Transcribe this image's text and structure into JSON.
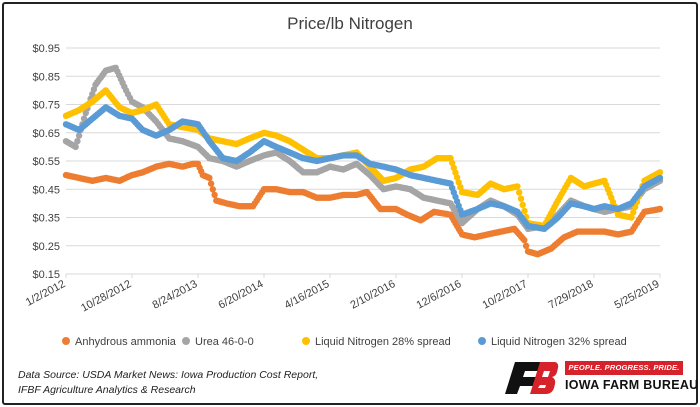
{
  "colors": {
    "anhydrous": "#ED7D31",
    "urea": "#A5A5A5",
    "liquid28": "#FFC000",
    "liquid32": "#5B9BD5",
    "grid": "#D9D9D9",
    "brand_red": "#D6232B"
  },
  "chart_data": {
    "type": "scatter",
    "title": "Price/lb Nitrogen",
    "xlabel": "",
    "ylabel": "",
    "ylim": [
      0.15,
      0.95
    ],
    "yticks": [
      "$0.15",
      "$0.25",
      "$0.35",
      "$0.45",
      "$0.55",
      "$0.65",
      "$0.75",
      "$0.85",
      "$0.95"
    ],
    "xticks": [
      "1/2/2012",
      "10/28/2012",
      "8/24/2013",
      "6/20/2014",
      "4/16/2015",
      "2/10/2016",
      "12/6/2016",
      "10/2/2017",
      "7/29/2018",
      "5/25/2019"
    ],
    "xlim": [
      "2012-01-02",
      "2019-05-25"
    ],
    "grid": true,
    "legend_position": "bottom",
    "series": [
      {
        "name": "Anhydrous ammonia",
        "key": "anhydrous",
        "points": [
          [
            "2012-01-02",
            0.5
          ],
          [
            "2012-03-01",
            0.49
          ],
          [
            "2012-05-01",
            0.48
          ],
          [
            "2012-07-01",
            0.49
          ],
          [
            "2012-09-01",
            0.48
          ],
          [
            "2012-10-28",
            0.5
          ],
          [
            "2012-12-15",
            0.51
          ],
          [
            "2013-02-15",
            0.53
          ],
          [
            "2013-04-15",
            0.54
          ],
          [
            "2013-06-15",
            0.53
          ],
          [
            "2013-08-01",
            0.54
          ],
          [
            "2013-08-24",
            0.54
          ],
          [
            "2013-09-15",
            0.5
          ],
          [
            "2013-10-15",
            0.49
          ],
          [
            "2013-11-15",
            0.41
          ],
          [
            "2014-01-01",
            0.4
          ],
          [
            "2014-03-01",
            0.39
          ],
          [
            "2014-05-01",
            0.39
          ],
          [
            "2014-06-20",
            0.45
          ],
          [
            "2014-08-15",
            0.45
          ],
          [
            "2014-10-15",
            0.44
          ],
          [
            "2014-12-15",
            0.44
          ],
          [
            "2015-02-15",
            0.42
          ],
          [
            "2015-04-16",
            0.42
          ],
          [
            "2015-06-15",
            0.43
          ],
          [
            "2015-08-15",
            0.43
          ],
          [
            "2015-10-01",
            0.44
          ],
          [
            "2015-12-01",
            0.38
          ],
          [
            "2016-02-10",
            0.38
          ],
          [
            "2016-04-01",
            0.36
          ],
          [
            "2016-06-01",
            0.34
          ],
          [
            "2016-08-01",
            0.37
          ],
          [
            "2016-10-15",
            0.36
          ],
          [
            "2016-12-06",
            0.29
          ],
          [
            "2017-02-01",
            0.28
          ],
          [
            "2017-04-01",
            0.29
          ],
          [
            "2017-06-01",
            0.3
          ],
          [
            "2017-08-01",
            0.31
          ],
          [
            "2017-09-15",
            0.27
          ],
          [
            "2017-10-02",
            0.23
          ],
          [
            "2017-11-15",
            0.22
          ],
          [
            "2018-01-15",
            0.24
          ],
          [
            "2018-03-15",
            0.28
          ],
          [
            "2018-05-15",
            0.3
          ],
          [
            "2018-07-29",
            0.3
          ],
          [
            "2018-09-15",
            0.3
          ],
          [
            "2018-11-15",
            0.29
          ],
          [
            "2019-01-15",
            0.3
          ],
          [
            "2019-03-15",
            0.37
          ],
          [
            "2019-05-25",
            0.38
          ]
        ]
      },
      {
        "name": "Urea 46-0-0",
        "key": "urea",
        "points": [
          [
            "2012-01-02",
            0.62
          ],
          [
            "2012-02-15",
            0.6
          ],
          [
            "2012-04-01",
            0.72
          ],
          [
            "2012-05-15",
            0.82
          ],
          [
            "2012-07-01",
            0.87
          ],
          [
            "2012-08-15",
            0.88
          ],
          [
            "2012-10-01",
            0.8
          ],
          [
            "2012-10-28",
            0.76
          ],
          [
            "2012-12-15",
            0.74
          ],
          [
            "2013-02-15",
            0.69
          ],
          [
            "2013-04-15",
            0.63
          ],
          [
            "2013-06-15",
            0.62
          ],
          [
            "2013-08-24",
            0.6
          ],
          [
            "2013-10-15",
            0.56
          ],
          [
            "2013-12-15",
            0.55
          ],
          [
            "2014-02-15",
            0.53
          ],
          [
            "2014-04-15",
            0.55
          ],
          [
            "2014-06-20",
            0.57
          ],
          [
            "2014-08-15",
            0.58
          ],
          [
            "2014-10-15",
            0.55
          ],
          [
            "2014-12-15",
            0.51
          ],
          [
            "2015-02-15",
            0.51
          ],
          [
            "2015-04-16",
            0.53
          ],
          [
            "2015-06-15",
            0.52
          ],
          [
            "2015-08-15",
            0.54
          ],
          [
            "2015-10-15",
            0.5
          ],
          [
            "2015-12-15",
            0.45
          ],
          [
            "2016-02-10",
            0.46
          ],
          [
            "2016-04-15",
            0.45
          ],
          [
            "2016-06-15",
            0.42
          ],
          [
            "2016-08-15",
            0.41
          ],
          [
            "2016-10-15",
            0.4
          ],
          [
            "2016-12-06",
            0.33
          ],
          [
            "2017-02-15",
            0.38
          ],
          [
            "2017-04-15",
            0.41
          ],
          [
            "2017-06-15",
            0.39
          ],
          [
            "2017-08-15",
            0.36
          ],
          [
            "2017-10-02",
            0.31
          ],
          [
            "2017-12-15",
            0.32
          ],
          [
            "2018-02-15",
            0.36
          ],
          [
            "2018-04-15",
            0.41
          ],
          [
            "2018-06-15",
            0.39
          ],
          [
            "2018-07-29",
            0.38
          ],
          [
            "2018-09-15",
            0.37
          ],
          [
            "2018-11-15",
            0.38
          ],
          [
            "2019-01-15",
            0.39
          ],
          [
            "2019-03-15",
            0.45
          ],
          [
            "2019-05-25",
            0.48
          ]
        ]
      },
      {
        "name": "Liquid Nitrogen 28% spread",
        "key": "liquid28",
        "points": [
          [
            "2012-01-02",
            0.71
          ],
          [
            "2012-03-01",
            0.73
          ],
          [
            "2012-05-01",
            0.76
          ],
          [
            "2012-07-01",
            0.8
          ],
          [
            "2012-09-01",
            0.74
          ],
          [
            "2012-10-28",
            0.72
          ],
          [
            "2012-12-15",
            0.73
          ],
          [
            "2013-02-15",
            0.75
          ],
          [
            "2013-04-15",
            0.68
          ],
          [
            "2013-06-15",
            0.67
          ],
          [
            "2013-08-24",
            0.66
          ],
          [
            "2013-10-15",
            0.63
          ],
          [
            "2013-12-15",
            0.62
          ],
          [
            "2014-02-15",
            0.61
          ],
          [
            "2014-04-15",
            0.63
          ],
          [
            "2014-06-20",
            0.65
          ],
          [
            "2014-08-15",
            0.64
          ],
          [
            "2014-10-15",
            0.62
          ],
          [
            "2014-12-15",
            0.59
          ],
          [
            "2015-02-15",
            0.56
          ],
          [
            "2015-04-16",
            0.56
          ],
          [
            "2015-06-15",
            0.57
          ],
          [
            "2015-08-15",
            0.58
          ],
          [
            "2015-10-15",
            0.53
          ],
          [
            "2015-12-15",
            0.48
          ],
          [
            "2016-02-10",
            0.49
          ],
          [
            "2016-04-15",
            0.52
          ],
          [
            "2016-06-15",
            0.53
          ],
          [
            "2016-08-15",
            0.56
          ],
          [
            "2016-10-15",
            0.56
          ],
          [
            "2016-12-06",
            0.44
          ],
          [
            "2017-02-15",
            0.43
          ],
          [
            "2017-04-15",
            0.47
          ],
          [
            "2017-06-15",
            0.45
          ],
          [
            "2017-08-15",
            0.46
          ],
          [
            "2017-10-02",
            0.33
          ],
          [
            "2017-12-15",
            0.32
          ],
          [
            "2018-02-15",
            0.41
          ],
          [
            "2018-04-15",
            0.49
          ],
          [
            "2018-06-15",
            0.46
          ],
          [
            "2018-07-29",
            0.47
          ],
          [
            "2018-09-15",
            0.48
          ],
          [
            "2018-11-15",
            0.36
          ],
          [
            "2019-01-15",
            0.35
          ],
          [
            "2019-03-15",
            0.48
          ],
          [
            "2019-05-25",
            0.51
          ]
        ]
      },
      {
        "name": "Liquid Nitrogen 32% spread",
        "key": "liquid32",
        "points": [
          [
            "2012-01-02",
            0.68
          ],
          [
            "2012-03-01",
            0.66
          ],
          [
            "2012-05-01",
            0.7
          ],
          [
            "2012-07-01",
            0.74
          ],
          [
            "2012-09-01",
            0.71
          ],
          [
            "2012-10-28",
            0.7
          ],
          [
            "2012-12-15",
            0.66
          ],
          [
            "2013-02-15",
            0.64
          ],
          [
            "2013-04-15",
            0.66
          ],
          [
            "2013-06-15",
            0.69
          ],
          [
            "2013-08-24",
            0.68
          ],
          [
            "2013-10-15",
            0.62
          ],
          [
            "2013-12-15",
            0.56
          ],
          [
            "2014-02-15",
            0.55
          ],
          [
            "2014-04-15",
            0.58
          ],
          [
            "2014-06-20",
            0.62
          ],
          [
            "2014-08-15",
            0.6
          ],
          [
            "2014-10-15",
            0.58
          ],
          [
            "2014-12-15",
            0.56
          ],
          [
            "2015-02-15",
            0.55
          ],
          [
            "2015-04-16",
            0.56
          ],
          [
            "2015-06-15",
            0.57
          ],
          [
            "2015-08-15",
            0.57
          ],
          [
            "2015-10-15",
            0.54
          ],
          [
            "2015-12-15",
            0.53
          ],
          [
            "2016-02-10",
            0.52
          ],
          [
            "2016-04-15",
            0.5
          ],
          [
            "2016-06-15",
            0.49
          ],
          [
            "2016-08-15",
            0.48
          ],
          [
            "2016-10-15",
            0.47
          ],
          [
            "2016-12-06",
            0.36
          ],
          [
            "2017-02-15",
            0.38
          ],
          [
            "2017-04-15",
            0.4
          ],
          [
            "2017-06-15",
            0.39
          ],
          [
            "2017-08-15",
            0.37
          ],
          [
            "2017-10-02",
            0.32
          ],
          [
            "2017-12-15",
            0.31
          ],
          [
            "2018-02-15",
            0.35
          ],
          [
            "2018-04-15",
            0.4
          ],
          [
            "2018-06-15",
            0.39
          ],
          [
            "2018-07-29",
            0.38
          ],
          [
            "2018-09-15",
            0.39
          ],
          [
            "2018-11-15",
            0.38
          ],
          [
            "2019-01-15",
            0.4
          ],
          [
            "2019-03-15",
            0.46
          ],
          [
            "2019-05-25",
            0.49
          ]
        ]
      }
    ]
  },
  "source": {
    "line1": "Data Source: USDA Market News: Iowa Production Cost Report,",
    "line2": "IFBF Agriculture Analytics & Research"
  },
  "logo": {
    "tagline": "PEOPLE. PROGRESS. PRIDE.",
    "org_name": "IOWA FARM BUREAU",
    "icon": "farm-bureau-fb-icon"
  }
}
